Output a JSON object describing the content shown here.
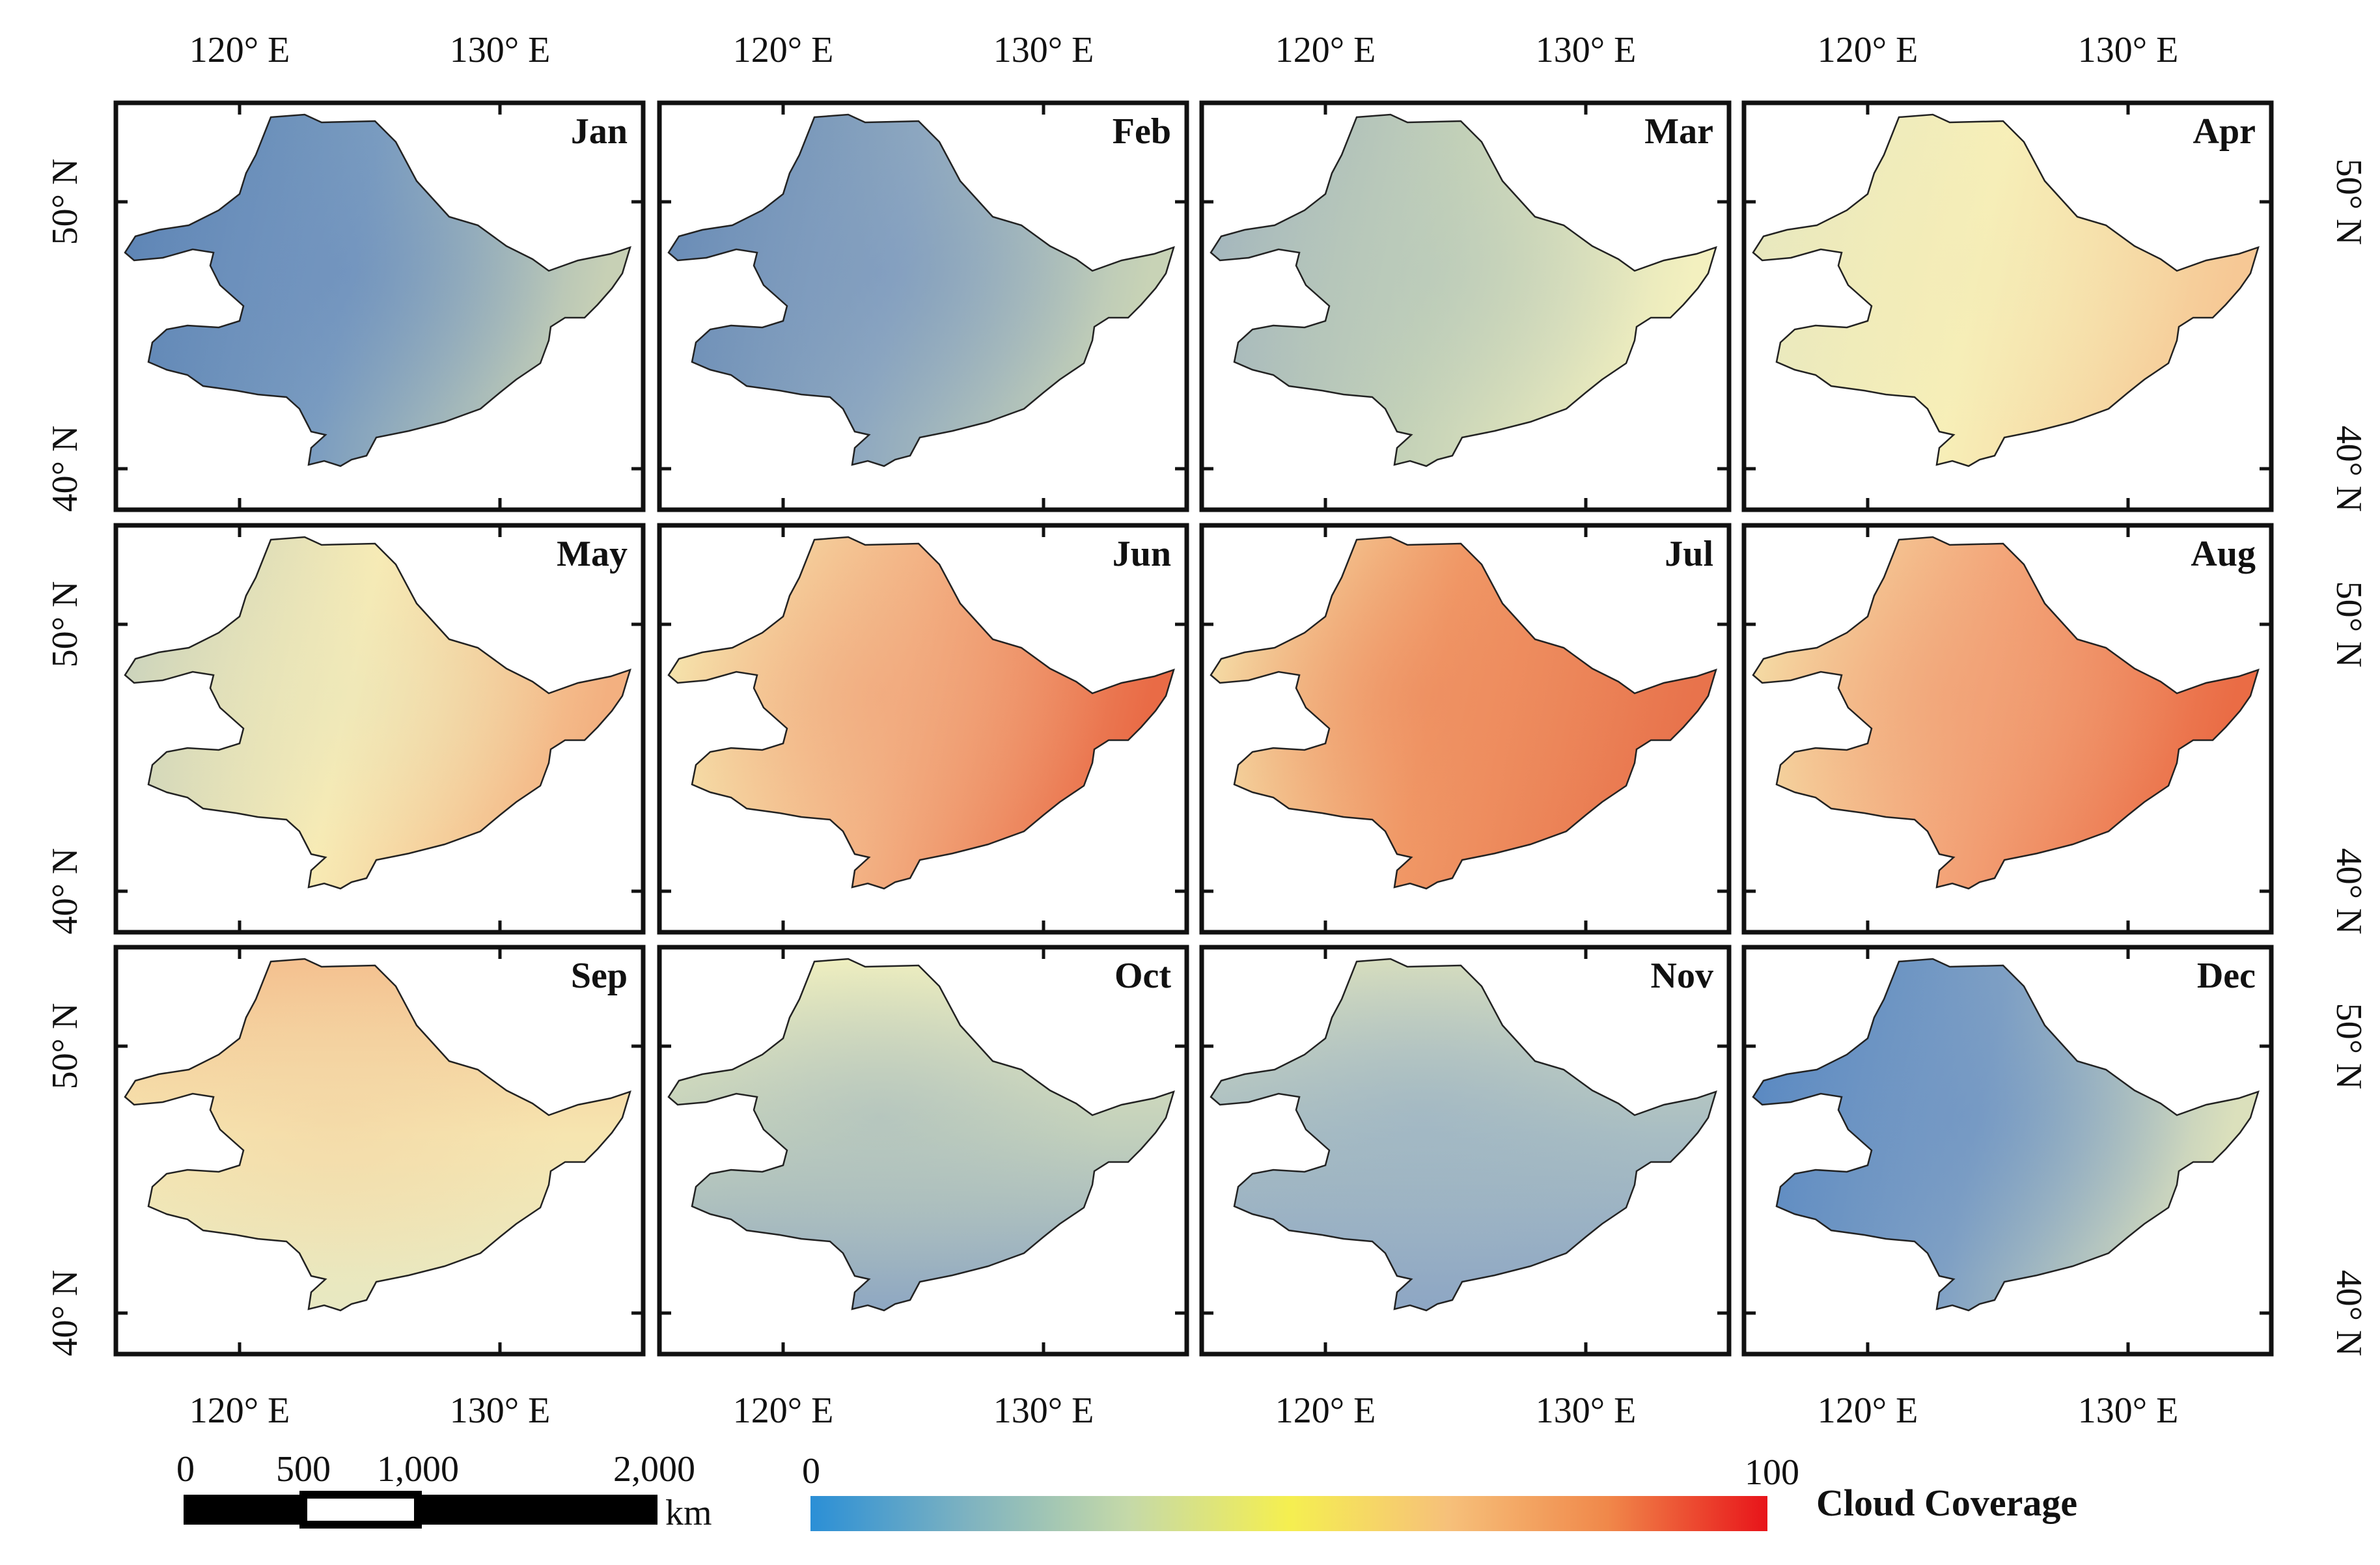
{
  "figure": {
    "colorbar": {
      "title": "Cloud Coverage",
      "min_label": "0",
      "max_label": "100",
      "stops": [
        "#2b8fd6",
        "#7fb3c0",
        "#c5d9a8",
        "#f5ef50",
        "#f6c07a",
        "#f0884a",
        "#e8141a"
      ]
    },
    "scalebar": {
      "labels": [
        "0",
        "500",
        "1,000",
        "2,000"
      ],
      "unit": "km"
    },
    "axis_labels": {
      "lon": [
        "120° E",
        "130° E"
      ],
      "lat": [
        "50° N",
        "40° N"
      ]
    },
    "panels": [
      {
        "month": "Jan",
        "low": "#5a82b4",
        "mid": "#7a9cc0",
        "high": "#c7d0b5",
        "band": "#6d8fbe",
        "dir": "h"
      },
      {
        "month": "Feb",
        "low": "#6488b5",
        "mid": "#8ea8c0",
        "high": "#c8d3b6",
        "band": "#7b98bf",
        "dir": "h"
      },
      {
        "month": "Mar",
        "low": "#9fb2be",
        "mid": "#c3d1b8",
        "high": "#f3f0bf",
        "band": "#b7c8bb",
        "dir": "h"
      },
      {
        "month": "Apr",
        "low": "#e5e7c0",
        "mid": "#f7efb8",
        "high": "#f6c895",
        "band": "#f3ebb6",
        "dir": "h"
      },
      {
        "month": "May",
        "low": "#c5d0bd",
        "mid": "#f7ebb5",
        "high": "#f3b080",
        "band": "#e9e6bb",
        "dir": "h"
      },
      {
        "month": "Jun",
        "low": "#f6ecb3",
        "mid": "#f3b385",
        "high": "#e96b46",
        "band": "#f0a57b",
        "dir": "h"
      },
      {
        "month": "Jul",
        "low": "#f5e7b0",
        "mid": "#f09866",
        "high": "#e8734c",
        "band": "#ed8a5e",
        "dir": "h"
      },
      {
        "month": "Aug",
        "low": "#f5e4ac",
        "mid": "#f3a579",
        "high": "#ea6c45",
        "band": "#f0a075",
        "dir": "h"
      },
      {
        "month": "Sep",
        "low": "#e7e8c2",
        "mid": "#f6e5b0",
        "high": "#f4c08f",
        "band": "#f3d3a3",
        "dir": "v"
      },
      {
        "month": "Oct",
        "low": "#8ea7c2",
        "mid": "#c2d0bc",
        "high": "#eeeebf",
        "band": "#a9bcbf",
        "dir": "v"
      },
      {
        "month": "Nov",
        "low": "#8da6c4",
        "mid": "#a8bdc3",
        "high": "#d6ddbe",
        "band": "#9cb3c4",
        "dir": "v"
      },
      {
        "month": "Dec",
        "low": "#5586c2",
        "mid": "#7fa0c4",
        "high": "#dbe0bc",
        "band": "#6e94c4",
        "dir": "h"
      }
    ]
  }
}
